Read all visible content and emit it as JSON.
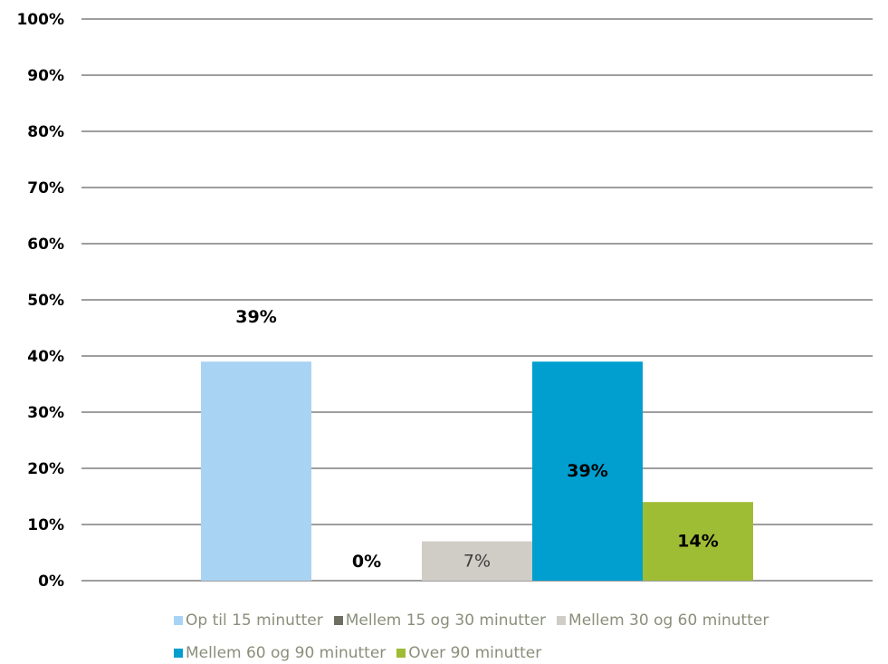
{
  "chart_data": {
    "type": "bar",
    "title": "",
    "xlabel": "",
    "ylabel": "",
    "ylim": [
      0,
      100
    ],
    "yticks": [
      0,
      10,
      20,
      30,
      40,
      50,
      60,
      70,
      80,
      90,
      100
    ],
    "ytick_labels": [
      "0%",
      "10%",
      "20%",
      "30%",
      "40%",
      "50%",
      "60%",
      "70%",
      "80%",
      "90%",
      "100%"
    ],
    "grid": true,
    "legend_position": "bottom",
    "series": [
      {
        "name": "Op til 15 minutter",
        "value": 39,
        "label": "39%",
        "color": "#a9d3f3",
        "label_bold": true,
        "label_placement": "above"
      },
      {
        "name": "Mellem 15 og 30 minutter",
        "value": 0,
        "label": "0%",
        "color": "#6e6e61",
        "label_bold": true,
        "label_placement": "above"
      },
      {
        "name": "Mellem 30 og 60 minutter",
        "value": 7,
        "label": "7%",
        "color": "#cfcdc6",
        "label_bold": false,
        "label_placement": "center"
      },
      {
        "name": "Mellem 60 og 90 minutter",
        "value": 39,
        "label": "39%",
        "color": "#009fcf",
        "label_bold": true,
        "label_placement": "center"
      },
      {
        "name": "Over 90 minutter",
        "value": 14,
        "label": "14%",
        "color": "#9fbc35",
        "label_bold": true,
        "label_placement": "center"
      }
    ]
  }
}
